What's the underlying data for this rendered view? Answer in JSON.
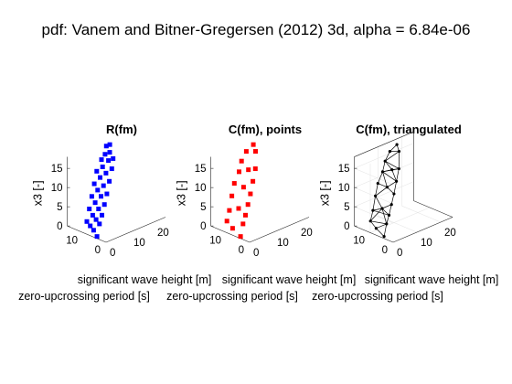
{
  "figure": {
    "title": "pdf: Vanem and Bitner-Gregersen (2012) 3d, alpha = 6.84e-06"
  },
  "chart_data": [
    {
      "type": "scatter",
      "title": "R(fm)",
      "color": "#0000ff",
      "xlabel": "significant wave height [m]",
      "ylabel": "zero-upcrossing period [s]",
      "zlabel": "x3 [-]",
      "xlim": [
        0,
        25
      ],
      "ylim": [
        0,
        17
      ],
      "zlim": [
        0,
        18
      ],
      "x_ticks": [
        "0",
        "10",
        "20"
      ],
      "y_ticks": [
        "0",
        "10"
      ],
      "z_ticks": [
        "0",
        "5",
        "10",
        "15"
      ],
      "grid": false,
      "points": [
        [
          1,
          5,
          0
        ],
        [
          1.5,
          7,
          1
        ],
        [
          2,
          9,
          1.5
        ],
        [
          2.5,
          11,
          2
        ],
        [
          3,
          6,
          2.5
        ],
        [
          3.5,
          8,
          3
        ],
        [
          4,
          10,
          3.5
        ],
        [
          4.5,
          12,
          4.5
        ],
        [
          5,
          7,
          4
        ],
        [
          5.5,
          9,
          5
        ],
        [
          6,
          11,
          6
        ],
        [
          6.5,
          13,
          7
        ],
        [
          7,
          8,
          6
        ],
        [
          7.5,
          10,
          7.5
        ],
        [
          8,
          12,
          8.5
        ],
        [
          8.5,
          14,
          9.5
        ],
        [
          9,
          9,
          8
        ],
        [
          9.5,
          11,
          9.5
        ],
        [
          10,
          13,
          11
        ],
        [
          10.5,
          15,
          12
        ],
        [
          11,
          10,
          10.5
        ],
        [
          11.5,
          12,
          12
        ],
        [
          12,
          14,
          13
        ],
        [
          12.5,
          15,
          14.5
        ],
        [
          13,
          11,
          13
        ],
        [
          13.5,
          13,
          14.5
        ],
        [
          14,
          15,
          15.5
        ],
        [
          14.5,
          12,
          15
        ],
        [
          15,
          14,
          16
        ],
        [
          15.5,
          16,
          17
        ],
        [
          16,
          15,
          17.5
        ]
      ]
    },
    {
      "type": "scatter",
      "title": "C(fm), points",
      "color": "#ff0000",
      "xlabel": "significant wave height [m]",
      "ylabel": "zero-upcrossing period [s]",
      "zlabel": "x3 [-]",
      "xlim": [
        0,
        25
      ],
      "ylim": [
        0,
        17
      ],
      "zlim": [
        0,
        18
      ],
      "x_ticks": [
        "0",
        "10",
        "20"
      ],
      "y_ticks": [
        "0",
        "10"
      ],
      "z_ticks": [
        "0",
        "5",
        "10",
        "15"
      ],
      "grid": false,
      "points": [
        [
          1,
          5,
          0
        ],
        [
          1.5,
          9,
          1
        ],
        [
          2,
          12,
          2
        ],
        [
          3,
          6,
          2.5
        ],
        [
          4,
          13,
          4
        ],
        [
          5,
          7,
          4
        ],
        [
          6,
          14,
          7
        ],
        [
          7,
          8,
          6
        ],
        [
          8,
          15,
          9.5
        ],
        [
          9,
          9,
          8
        ],
        [
          10,
          15,
          12
        ],
        [
          11,
          10,
          10.5
        ],
        [
          12,
          16,
          14
        ],
        [
          13,
          11,
          13
        ],
        [
          14,
          16,
          16
        ],
        [
          15,
          13,
          16.5
        ],
        [
          16,
          15,
          17.5
        ],
        [
          5,
          10,
          5
        ],
        [
          9,
          12,
          9
        ],
        [
          12,
          13,
          12.5
        ]
      ]
    },
    {
      "type": "scatter",
      "title": "C(fm), triangulated",
      "color": "#000000",
      "xlabel": "significant wave height [m]",
      "ylabel": "zero-upcrossing period [s]",
      "zlabel": "x3 [-]",
      "xlim": [
        0,
        25
      ],
      "ylim": [
        0,
        17
      ],
      "zlim": [
        0,
        18
      ],
      "x_ticks": [
        "0",
        "10",
        "20"
      ],
      "y_ticks": [
        "0",
        "10"
      ],
      "z_ticks": [
        "0",
        "5",
        "10",
        "15"
      ],
      "grid": true,
      "points": [
        [
          1,
          5,
          0
        ],
        [
          1.5,
          9,
          1
        ],
        [
          2,
          12,
          2
        ],
        [
          3,
          6,
          2.5
        ],
        [
          4,
          13,
          4
        ],
        [
          5,
          7,
          4
        ],
        [
          6,
          14,
          7
        ],
        [
          7,
          8,
          6
        ],
        [
          8,
          15,
          9.5
        ],
        [
          9,
          9,
          8
        ],
        [
          10,
          15,
          12
        ],
        [
          11,
          10,
          10.5
        ],
        [
          12,
          16,
          14
        ],
        [
          13,
          11,
          13
        ],
        [
          14,
          16,
          16
        ],
        [
          15,
          13,
          16.5
        ],
        [
          16,
          15,
          17.5
        ],
        [
          5,
          10,
          5
        ],
        [
          9,
          12,
          9
        ],
        [
          12,
          13,
          12.5
        ]
      ]
    }
  ]
}
